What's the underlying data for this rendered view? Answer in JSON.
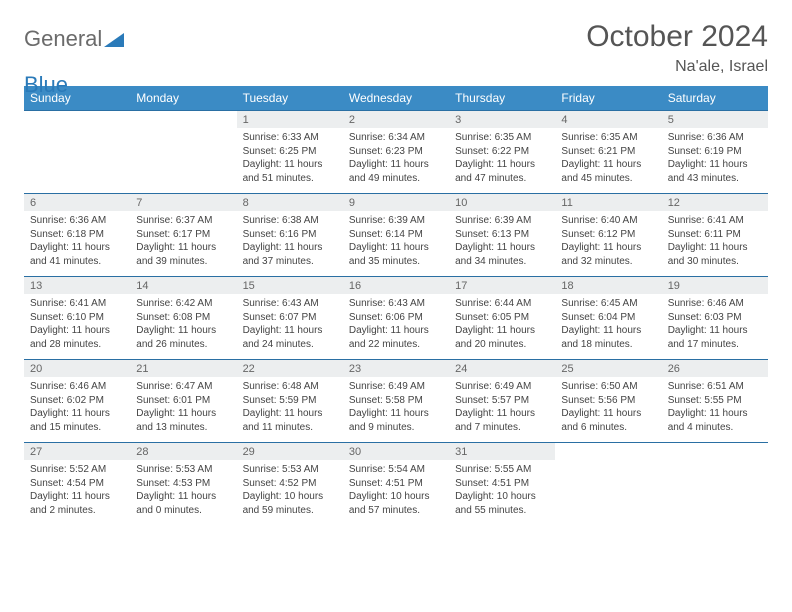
{
  "brand": {
    "part1": "General",
    "part2": "Blue"
  },
  "title": "October 2024",
  "location": "Na'ale, Israel",
  "colors": {
    "header_bg": "#3b8bc5",
    "header_text": "#ffffff",
    "num_bg": "#eceeef",
    "border": "#2a6fa3",
    "brand_gray": "#6b6b6b",
    "brand_blue": "#2a7ab9"
  },
  "day_names": [
    "Sunday",
    "Monday",
    "Tuesday",
    "Wednesday",
    "Thursday",
    "Friday",
    "Saturday"
  ],
  "weeks": [
    [
      null,
      null,
      {
        "n": "1",
        "sr": "6:33 AM",
        "ss": "6:25 PM",
        "dl": "11 hours and 51 minutes."
      },
      {
        "n": "2",
        "sr": "6:34 AM",
        "ss": "6:23 PM",
        "dl": "11 hours and 49 minutes."
      },
      {
        "n": "3",
        "sr": "6:35 AM",
        "ss": "6:22 PM",
        "dl": "11 hours and 47 minutes."
      },
      {
        "n": "4",
        "sr": "6:35 AM",
        "ss": "6:21 PM",
        "dl": "11 hours and 45 minutes."
      },
      {
        "n": "5",
        "sr": "6:36 AM",
        "ss": "6:19 PM",
        "dl": "11 hours and 43 minutes."
      }
    ],
    [
      {
        "n": "6",
        "sr": "6:36 AM",
        "ss": "6:18 PM",
        "dl": "11 hours and 41 minutes."
      },
      {
        "n": "7",
        "sr": "6:37 AM",
        "ss": "6:17 PM",
        "dl": "11 hours and 39 minutes."
      },
      {
        "n": "8",
        "sr": "6:38 AM",
        "ss": "6:16 PM",
        "dl": "11 hours and 37 minutes."
      },
      {
        "n": "9",
        "sr": "6:39 AM",
        "ss": "6:14 PM",
        "dl": "11 hours and 35 minutes."
      },
      {
        "n": "10",
        "sr": "6:39 AM",
        "ss": "6:13 PM",
        "dl": "11 hours and 34 minutes."
      },
      {
        "n": "11",
        "sr": "6:40 AM",
        "ss": "6:12 PM",
        "dl": "11 hours and 32 minutes."
      },
      {
        "n": "12",
        "sr": "6:41 AM",
        "ss": "6:11 PM",
        "dl": "11 hours and 30 minutes."
      }
    ],
    [
      {
        "n": "13",
        "sr": "6:41 AM",
        "ss": "6:10 PM",
        "dl": "11 hours and 28 minutes."
      },
      {
        "n": "14",
        "sr": "6:42 AM",
        "ss": "6:08 PM",
        "dl": "11 hours and 26 minutes."
      },
      {
        "n": "15",
        "sr": "6:43 AM",
        "ss": "6:07 PM",
        "dl": "11 hours and 24 minutes."
      },
      {
        "n": "16",
        "sr": "6:43 AM",
        "ss": "6:06 PM",
        "dl": "11 hours and 22 minutes."
      },
      {
        "n": "17",
        "sr": "6:44 AM",
        "ss": "6:05 PM",
        "dl": "11 hours and 20 minutes."
      },
      {
        "n": "18",
        "sr": "6:45 AM",
        "ss": "6:04 PM",
        "dl": "11 hours and 18 minutes."
      },
      {
        "n": "19",
        "sr": "6:46 AM",
        "ss": "6:03 PM",
        "dl": "11 hours and 17 minutes."
      }
    ],
    [
      {
        "n": "20",
        "sr": "6:46 AM",
        "ss": "6:02 PM",
        "dl": "11 hours and 15 minutes."
      },
      {
        "n": "21",
        "sr": "6:47 AM",
        "ss": "6:01 PM",
        "dl": "11 hours and 13 minutes."
      },
      {
        "n": "22",
        "sr": "6:48 AM",
        "ss": "5:59 PM",
        "dl": "11 hours and 11 minutes."
      },
      {
        "n": "23",
        "sr": "6:49 AM",
        "ss": "5:58 PM",
        "dl": "11 hours and 9 minutes."
      },
      {
        "n": "24",
        "sr": "6:49 AM",
        "ss": "5:57 PM",
        "dl": "11 hours and 7 minutes."
      },
      {
        "n": "25",
        "sr": "6:50 AM",
        "ss": "5:56 PM",
        "dl": "11 hours and 6 minutes."
      },
      {
        "n": "26",
        "sr": "6:51 AM",
        "ss": "5:55 PM",
        "dl": "11 hours and 4 minutes."
      }
    ],
    [
      {
        "n": "27",
        "sr": "5:52 AM",
        "ss": "4:54 PM",
        "dl": "11 hours and 2 minutes."
      },
      {
        "n": "28",
        "sr": "5:53 AM",
        "ss": "4:53 PM",
        "dl": "11 hours and 0 minutes."
      },
      {
        "n": "29",
        "sr": "5:53 AM",
        "ss": "4:52 PM",
        "dl": "10 hours and 59 minutes."
      },
      {
        "n": "30",
        "sr": "5:54 AM",
        "ss": "4:51 PM",
        "dl": "10 hours and 57 minutes."
      },
      {
        "n": "31",
        "sr": "5:55 AM",
        "ss": "4:51 PM",
        "dl": "10 hours and 55 minutes."
      },
      null,
      null
    ]
  ],
  "labels": {
    "sunrise": "Sunrise:",
    "sunset": "Sunset:",
    "daylight": "Daylight:"
  }
}
